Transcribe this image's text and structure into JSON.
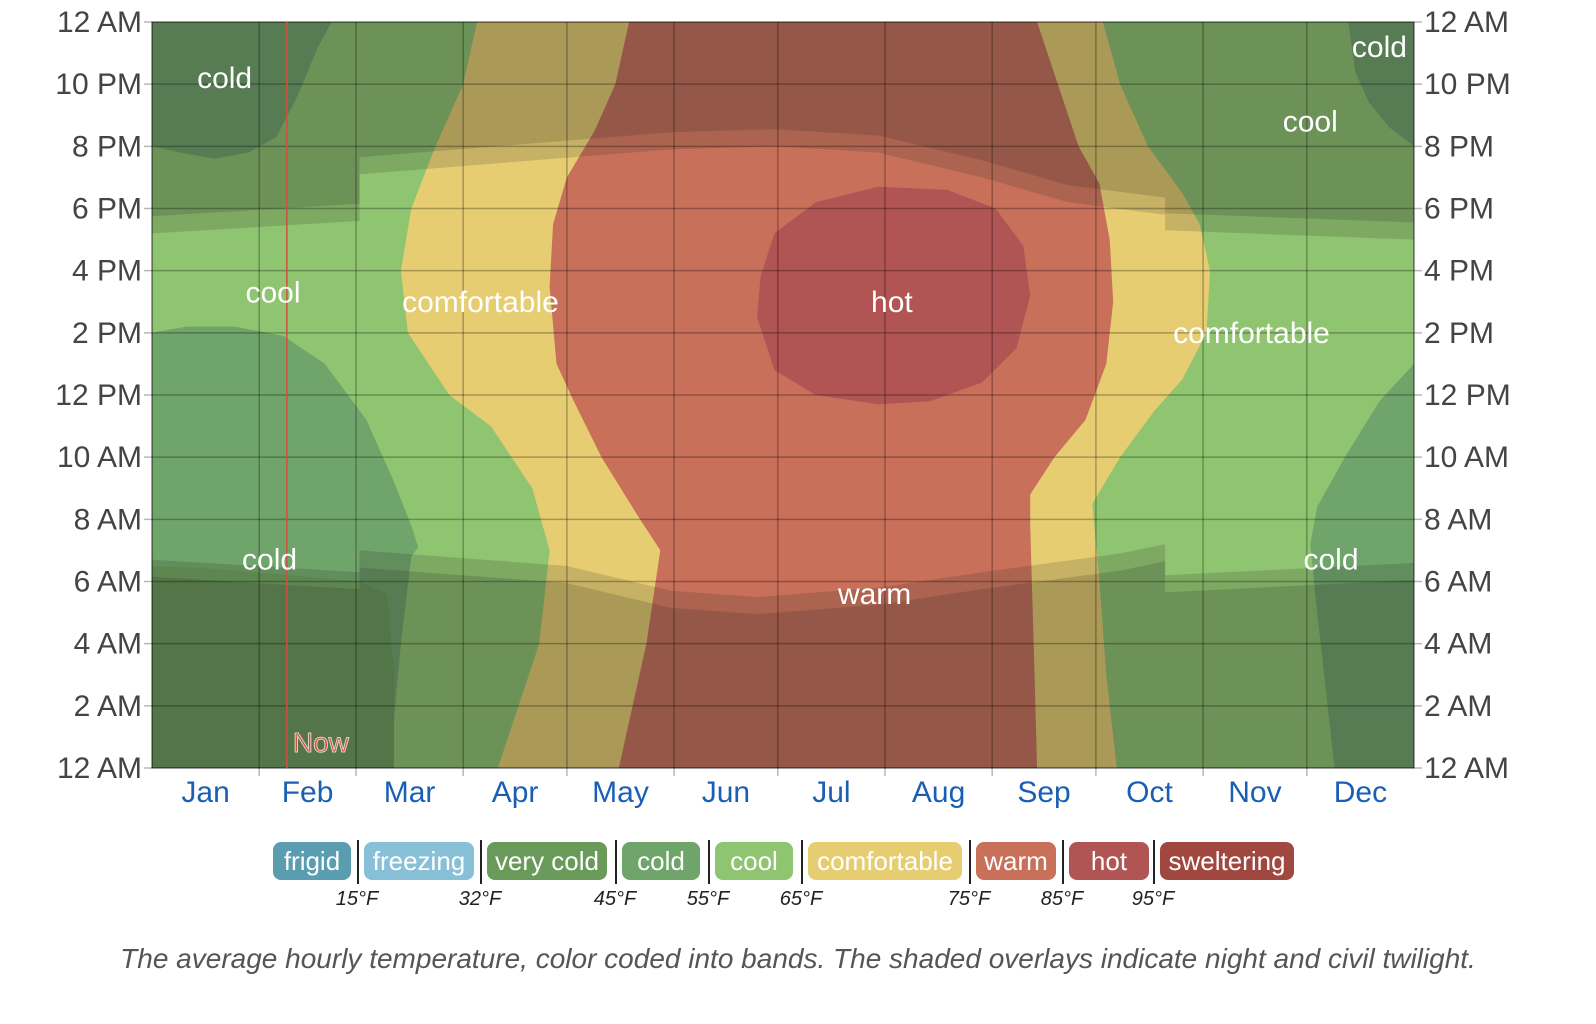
{
  "chart_data": {
    "type": "heatmap",
    "title": "",
    "subtitle": "",
    "xlabel": "",
    "ylabel": "",
    "x_categories": [
      "Jan",
      "Feb",
      "Mar",
      "Apr",
      "May",
      "Jun",
      "Jul",
      "Aug",
      "Sep",
      "Oct",
      "Nov",
      "Dec"
    ],
    "y_ticks": [
      "12 AM",
      "2 AM",
      "4 AM",
      "6 AM",
      "8 AM",
      "10 AM",
      "12 PM",
      "2 PM",
      "4 PM",
      "6 PM",
      "8 PM",
      "10 PM",
      "12 AM"
    ],
    "y_range_hours": [
      0,
      24
    ],
    "x_range_days": [
      0,
      365
    ],
    "bands": [
      {
        "name": "frigid",
        "color": "#5a9cb0"
      },
      {
        "name": "freezing",
        "color": "#88c0d8"
      },
      {
        "name": "very cold",
        "color": "#6a9a5a"
      },
      {
        "name": "cold",
        "color": "#6fa46a"
      },
      {
        "name": "cool",
        "color": "#8fc470"
      },
      {
        "name": "comfortable",
        "color": "#e6cd72"
      },
      {
        "name": "warm",
        "color": "#c8705a"
      },
      {
        "name": "hot",
        "color": "#b05454"
      },
      {
        "name": "sweltering",
        "color": "#a04840"
      }
    ],
    "thresholds": [
      {
        "label": "15°F",
        "value": 15
      },
      {
        "label": "32°F",
        "value": 32
      },
      {
        "label": "45°F",
        "value": 45
      },
      {
        "label": "55°F",
        "value": 55
      },
      {
        "label": "65°F",
        "value": 65
      },
      {
        "label": "75°F",
        "value": 75
      },
      {
        "label": "85°F",
        "value": 85
      },
      {
        "label": "95°F",
        "value": 95
      }
    ],
    "region_labels": [
      {
        "text": "cold",
        "day": 21,
        "hour": 22.2
      },
      {
        "text": "cold",
        "day": 355,
        "hour": 23.2
      },
      {
        "text": "cool",
        "day": 335,
        "hour": 20.8
      },
      {
        "text": "cool",
        "day": 35,
        "hour": 15.3
      },
      {
        "text": "comfortable",
        "day": 95,
        "hour": 15.0
      },
      {
        "text": "hot",
        "day": 214,
        "hour": 15.0
      },
      {
        "text": "comfortable",
        "day": 318,
        "hour": 14.0
      },
      {
        "text": "cold",
        "day": 34,
        "hour": 6.7
      },
      {
        "text": "cold",
        "day": 341,
        "hour": 6.7
      },
      {
        "text": "warm",
        "day": 209,
        "hour": 5.6
      }
    ],
    "now_marker": {
      "label": "Now",
      "day": 39
    },
    "overlays": [
      "night",
      "civil twilight"
    ]
  },
  "legend": [
    "frigid",
    "freezing",
    "very cold",
    "cold",
    "cool",
    "comfortable",
    "warm",
    "hot",
    "sweltering"
  ],
  "caption": "The average hourly temperature, color coded into bands. The shaded overlays indicate night and civil twilight."
}
